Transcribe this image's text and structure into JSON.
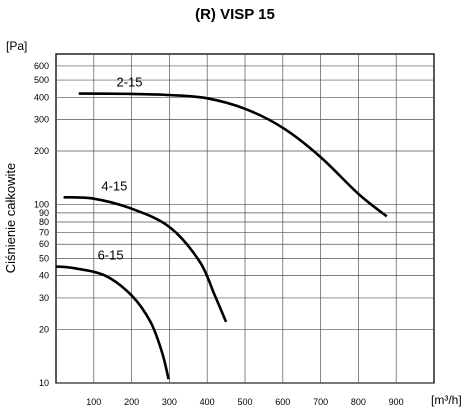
{
  "chart_data": {
    "type": "line",
    "title": "(R) VISP 15",
    "ylabel": "Ciśnienie całkowite",
    "yunit": "[Pa]",
    "xunit": "[m³/h]",
    "yscale": "log",
    "xlim": [
      0,
      1000
    ],
    "ylim": [
      10,
      700
    ],
    "x_ticks": [
      "100",
      "200",
      "300",
      "400",
      "500",
      "600",
      "700",
      "800",
      "900"
    ],
    "y_ticks": [
      "10",
      "20",
      "30",
      "40",
      "50",
      "60",
      "70",
      "80",
      "90",
      "100",
      "200",
      "300",
      "400",
      "500",
      "600"
    ],
    "grid": true,
    "series": [
      {
        "name": "2-15",
        "points": [
          [
            60,
            420
          ],
          [
            200,
            418
          ],
          [
            300,
            412
          ],
          [
            400,
            395
          ],
          [
            500,
            345
          ],
          [
            600,
            270
          ],
          [
            700,
            185
          ],
          [
            800,
            115
          ],
          [
            875,
            86
          ]
        ]
      },
      {
        "name": "4-15",
        "points": [
          [
            20,
            110
          ],
          [
            100,
            108
          ],
          [
            200,
            95
          ],
          [
            300,
            75
          ],
          [
            380,
            48
          ],
          [
            420,
            31
          ],
          [
            450,
            22
          ]
        ]
      },
      {
        "name": "6-15",
        "points": [
          [
            0,
            45
          ],
          [
            50,
            44
          ],
          [
            130,
            40
          ],
          [
            200,
            31
          ],
          [
            250,
            22
          ],
          [
            280,
            15
          ],
          [
            298,
            10.5
          ]
        ]
      }
    ]
  }
}
